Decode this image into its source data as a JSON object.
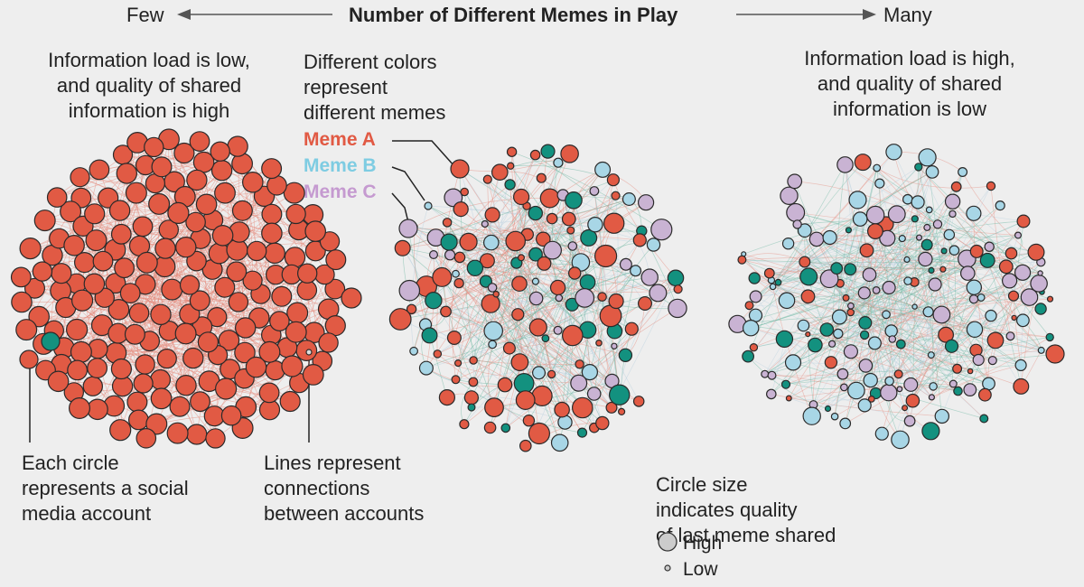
{
  "header": {
    "few": "Few",
    "title": "Number of Different Memes in Play",
    "many": "Many"
  },
  "captions": {
    "left": [
      "Information load is low,",
      "and quality of shared",
      "information is high"
    ],
    "middle": [
      "Different colors",
      "represent",
      "different memes"
    ],
    "right": [
      "Information load is high,",
      "and quality of shared",
      "information is low"
    ]
  },
  "memes": [
    {
      "label": "Meme A",
      "color": "#e15a44"
    },
    {
      "label": "Meme B",
      "color": "#7ecce2"
    },
    {
      "label": "Meme C",
      "color": "#c59ad0"
    }
  ],
  "annotations": {
    "circle": [
      "Each circle",
      "represents a social",
      "media account"
    ],
    "lines": [
      "Lines represent",
      "connections",
      "between accounts"
    ],
    "size": [
      "Circle size",
      "indicates quality",
      "of last meme shared"
    ]
  },
  "size_legend": {
    "high": "High",
    "low": "Low"
  },
  "colors": {
    "memeA": "#e15a44",
    "memeB": "#a8d6e6",
    "memeC": "#c9b3d3",
    "teal": "#13917f",
    "background": "#eeeeee",
    "edge_red": "#e58a7c",
    "edge_teal": "#69b5a0",
    "edge_blue": "#b8d0df"
  }
}
